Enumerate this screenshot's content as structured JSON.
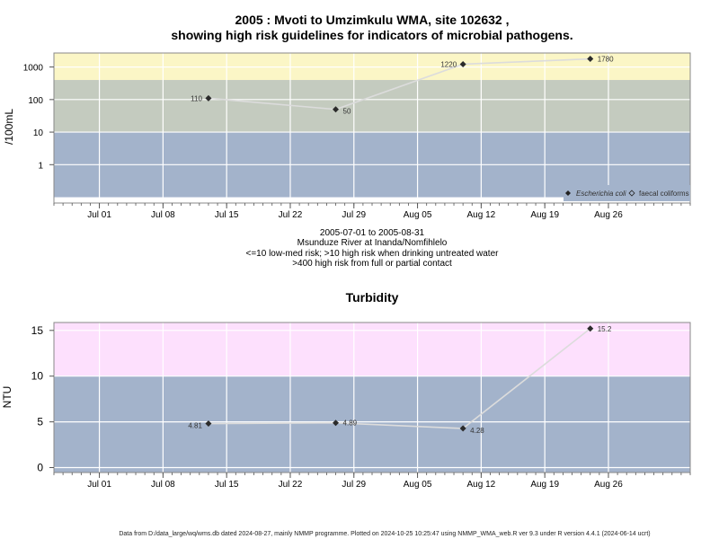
{
  "chart_data": [
    {
      "type": "line",
      "title_line1": "2005 : Mvoti to Umzimkulu WMA, site 102632 ,",
      "title_line2": "showing high risk guidelines for indicators of microbial pathogens.",
      "ylabel": "/100mL",
      "yscale": "log",
      "yticks": [
        "1",
        "10",
        "100",
        "1000"
      ],
      "xticks": [
        "Jul 01",
        "Jul 08",
        "Jul 15",
        "Jul 22",
        "Jul 29",
        "Aug 05",
        "Aug 12",
        "Aug 19",
        "Aug 26"
      ],
      "bands": [
        {
          "from": 0.1,
          "to": 10,
          "color": "#a3b3cb"
        },
        {
          "from": 10,
          "to": 400,
          "color": "#c4cbbf"
        },
        {
          "from": 400,
          "to": 3000,
          "color": "#fbf6c6"
        }
      ],
      "series": [
        {
          "name": "Escherichia coli",
          "points": [
            {
              "date": "2005-07-13",
              "value": 110,
              "label": "110"
            },
            {
              "date": "2005-07-27",
              "value": 50,
              "label": "50"
            },
            {
              "date": "2005-08-10",
              "value": 1220,
              "label": "1220"
            },
            {
              "date": "2005-08-24",
              "value": 1780,
              "label": "1780"
            }
          ]
        },
        {
          "name": "faecal coliforms",
          "points": []
        }
      ],
      "legend_placement": "bottom-right",
      "notes": [
        "2005-07-01 to 2005-08-31",
        "Msunduze River at Inanda/Nomfihlelo",
        "<=10 low-med risk; >10 high risk when drinking untreated water",
        ">400 high risk from full or partial contact"
      ]
    },
    {
      "type": "line",
      "title": "Turbidity",
      "ylabel": "NTU",
      "yticks": [
        "0",
        "5",
        "10",
        "15"
      ],
      "ylim": [
        -0.6,
        16
      ],
      "xticks": [
        "Jul 01",
        "Jul 08",
        "Jul 15",
        "Jul 22",
        "Jul 29",
        "Aug 05",
        "Aug 12",
        "Aug 19",
        "Aug 26"
      ],
      "bands": [
        {
          "from": -0.6,
          "to": 10,
          "color": "#a3b3cb"
        },
        {
          "from": 10,
          "to": 16,
          "color": "#fde0fd"
        }
      ],
      "series": [
        {
          "name": "Turbidity",
          "points": [
            {
              "date": "2005-07-13",
              "value": 4.81,
              "label": "4.81"
            },
            {
              "date": "2005-07-27",
              "value": 4.89,
              "label": "4.89"
            },
            {
              "date": "2005-08-10",
              "value": 4.28,
              "label": "4.28"
            },
            {
              "date": "2005-08-24",
              "value": 15.2,
              "label": "15.2"
            }
          ]
        }
      ]
    }
  ],
  "footer": "Data from D:/data_large/wq/wms.db dated 2024-08-27, mainly NMMP programme. Plotted on 2024-10-25 10:25:47 using NMMP_WMA_web.R ver 9.3 under R version 4.4.1 (2024-06-14 ucrt)"
}
